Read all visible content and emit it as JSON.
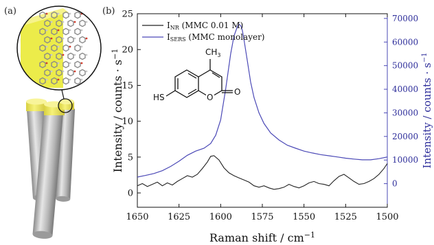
{
  "panels": {
    "a_label": "(a)",
    "b_label": "(b)"
  },
  "molecule": {
    "substituent": "CH",
    "substituent_sub": "3",
    "thiol": "HS",
    "carbonyl": "O",
    "ring_oxygen": "O"
  },
  "chart_data": {
    "type": "line",
    "xlabel": "Raman shift / cm",
    "xlabel_sup": "−1",
    "ylabel": "Intensity / counts · s",
    "ylabel_sup": "−1",
    "ylabel_right": "Intensity / counts · s",
    "ylabel_right_sup": "−1",
    "xlim": [
      1650,
      1500
    ],
    "ylim": [
      -2,
      25
    ],
    "ylim_right": [
      -10000,
      72000
    ],
    "x_ticks": [
      "1650",
      "1625",
      "1600",
      "1575",
      "1550",
      "1525",
      "1500"
    ],
    "x_tick_values": [
      1650,
      1625,
      1600,
      1575,
      1550,
      1525,
      1500
    ],
    "y_ticks": [
      "0",
      "5",
      "10",
      "15",
      "20",
      "25"
    ],
    "y_tick_values": [
      0,
      5,
      10,
      15,
      20,
      25
    ],
    "y_right_ticks": [
      "0",
      "10000",
      "20000",
      "30000",
      "40000",
      "50000",
      "60000",
      "70000"
    ],
    "y_right_tick_values": [
      0,
      10000,
      20000,
      30000,
      40000,
      50000,
      60000,
      70000
    ],
    "legend_position": "top-left",
    "series": [
      {
        "name": "I",
        "name_sub": "NR",
        "name_rest": " (MMC 0.01 M)",
        "axis": "left",
        "color": "#222222",
        "x": [
          1650,
          1647,
          1644,
          1641,
          1638,
          1635,
          1632,
          1629,
          1626,
          1623,
          1620,
          1617,
          1614,
          1611,
          1608,
          1606,
          1604,
          1601,
          1598,
          1595,
          1592,
          1589,
          1586,
          1583,
          1580,
          1577,
          1574,
          1571,
          1568,
          1565,
          1562,
          1559,
          1556,
          1553,
          1550,
          1547,
          1544,
          1541,
          1538,
          1535,
          1532,
          1529,
          1526,
          1523,
          1520,
          1517,
          1514,
          1511,
          1508,
          1505,
          1502,
          1500
        ],
        "values": [
          1.0,
          1.3,
          0.9,
          1.2,
          1.5,
          1.0,
          1.4,
          1.1,
          1.6,
          2.0,
          2.4,
          2.2,
          2.6,
          3.4,
          4.3,
          5.1,
          5.2,
          4.6,
          3.5,
          2.8,
          2.4,
          2.1,
          1.8,
          1.5,
          1.0,
          0.8,
          1.0,
          0.7,
          0.5,
          0.6,
          0.8,
          1.2,
          0.9,
          0.7,
          1.0,
          1.4,
          1.6,
          1.3,
          1.2,
          1.0,
          1.7,
          2.3,
          2.6,
          2.1,
          1.6,
          1.2,
          1.3,
          1.6,
          2.0,
          2.6,
          3.4,
          4.1
        ]
      },
      {
        "name": "I",
        "name_sub": "SERS",
        "name_rest": " (MMC monolayer)",
        "axis": "right",
        "color": "#4a48b6",
        "x": [
          1650,
          1645,
          1640,
          1635,
          1630,
          1625,
          1620,
          1615,
          1610,
          1606,
          1603,
          1600,
          1597,
          1594,
          1592,
          1590,
          1589,
          1588,
          1587,
          1586,
          1584,
          1582,
          1580,
          1577,
          1574,
          1570,
          1565,
          1560,
          1555,
          1550,
          1545,
          1540,
          1535,
          1530,
          1525,
          1520,
          1515,
          1510,
          1505,
          1500
        ],
        "values": [
          2800,
          3500,
          4300,
          5500,
          7300,
          9500,
          12000,
          13800,
          15000,
          17000,
          20500,
          27000,
          40000,
          55000,
          62500,
          66500,
          67500,
          67000,
          65000,
          61000,
          52000,
          43000,
          36500,
          30000,
          25500,
          21500,
          18500,
          16300,
          15000,
          13800,
          13000,
          12300,
          11800,
          11300,
          10800,
          10400,
          10100,
          10100,
          10600,
          11300
        ]
      }
    ]
  }
}
